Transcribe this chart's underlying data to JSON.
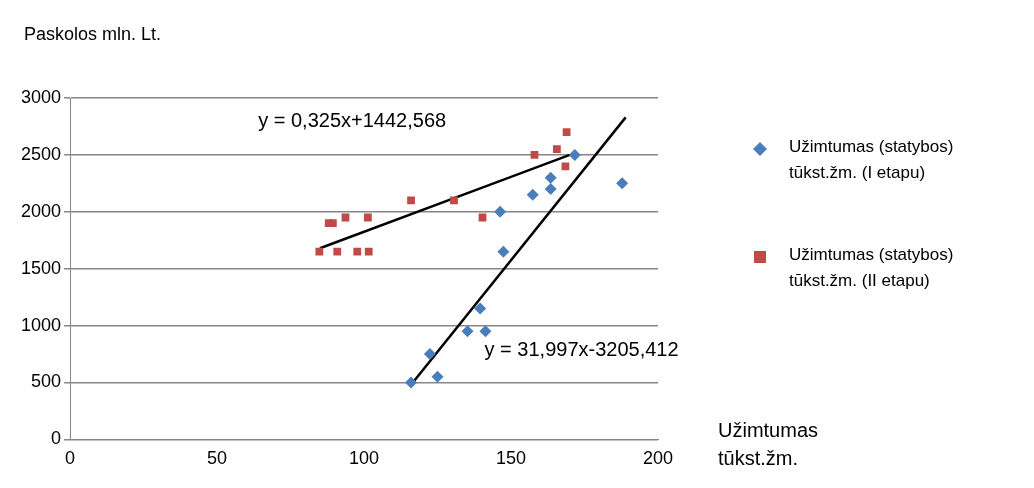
{
  "chart_data": {
    "type": "scatter",
    "ylabel": "Paskolos mln. Lt.",
    "xlabel": "Užimtumas tūkst.žm.",
    "xlim": [
      0,
      200
    ],
    "xticks": [
      0,
      50,
      100,
      150,
      200
    ],
    "ylim": [
      0,
      3000
    ],
    "yticks": [
      0,
      500,
      1000,
      1500,
      2000,
      2500,
      3000
    ],
    "grid": "y",
    "legend": "right",
    "annotations": [
      "y = 0,325x+1442,568",
      "y = 31,997x-3205,412"
    ],
    "series": [
      {
        "name": "Užimtumas (statybos) tūkst.žm. (I etapu)",
        "color": "#4a7ebb",
        "marker": "diamond",
        "x": [
          116,
          122.4,
          125,
          135.2,
          141.3,
          139.5,
          147.4,
          146.3,
          157.4,
          163.5,
          163.5,
          171.7,
          187.8
        ],
        "values": [
          500,
          750,
          550,
          950,
          950,
          1150,
          1650,
          2000,
          2150,
          2200,
          2300,
          2500,
          2250
        ]
      },
      {
        "name": "Užimtumas (statybos) tūkst.žm. (II etapu)",
        "color": "#be4b48",
        "marker": "square",
        "x": [
          84.8,
          90.9,
          88,
          89.4,
          93.7,
          101.3,
          97.7,
          101.6,
          116,
          130.6,
          140.3,
          158,
          165.6,
          168.5,
          168.9
        ],
        "values": [
          1650,
          1650,
          1900,
          1900,
          1950,
          1950,
          1650,
          1650,
          2100,
          2100,
          1950,
          2500,
          2550,
          2400,
          2700
        ]
      },
      {
        "type": "line",
        "color": "#000000",
        "marker": "none",
        "x": [
          85,
          170
        ],
        "values": [
          1680,
          2500
        ]
      },
      {
        "type": "line",
        "color": "#000000",
        "marker": "none",
        "x": [
          116,
          189
        ],
        "values": [
          480,
          2830
        ]
      }
    ]
  }
}
